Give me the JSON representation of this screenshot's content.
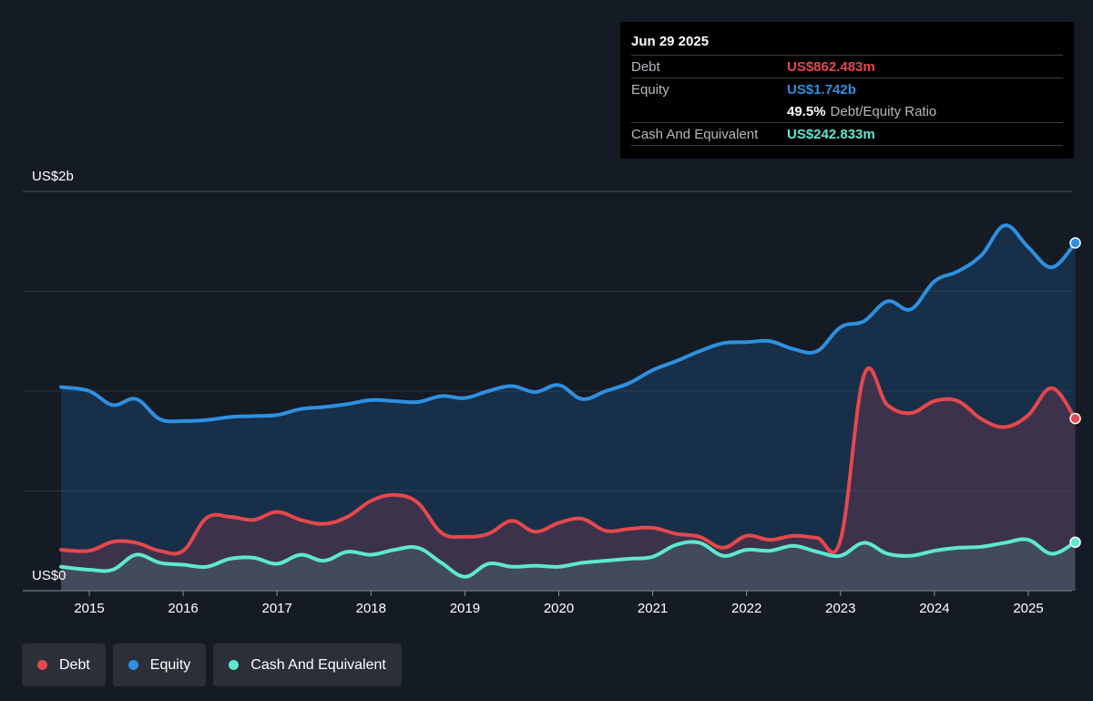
{
  "tooltip": {
    "date": "Jun 29 2025",
    "debt_label": "Debt",
    "debt_value": "US$862.483m",
    "equity_label": "Equity",
    "equity_value": "US$1.742b",
    "ratio_value": "49.5%",
    "ratio_label": "Debt/Equity Ratio",
    "cash_label": "Cash And Equivalent",
    "cash_value": "US$242.833m"
  },
  "legend": [
    {
      "label": "Debt",
      "color": "#e5484d"
    },
    {
      "label": "Equity",
      "color": "#2e90e0"
    },
    {
      "label": "Cash And Equivalent",
      "color": "#5ee8cf"
    }
  ],
  "chart_data": {
    "type": "area",
    "title": "",
    "xlabel": "",
    "ylabel": "",
    "y_axis_labels": [
      "US$2b",
      "US$0"
    ],
    "x_ticks": [
      "2015",
      "2016",
      "2017",
      "2018",
      "2019",
      "2020",
      "2021",
      "2022",
      "2023",
      "2024",
      "2025"
    ],
    "xlim": [
      2014.7,
      2025.5
    ],
    "ylim": [
      0,
      2000
    ],
    "y_unit": "US$m",
    "grid": true,
    "legend_position": "bottom-left",
    "series": [
      {
        "name": "Equity",
        "color": "#2e90e0",
        "points": [
          [
            2014.7,
            1020
          ],
          [
            2015.0,
            1000
          ],
          [
            2015.25,
            930
          ],
          [
            2015.5,
            960
          ],
          [
            2015.75,
            860
          ],
          [
            2016.0,
            850
          ],
          [
            2016.25,
            855
          ],
          [
            2016.5,
            870
          ],
          [
            2016.75,
            875
          ],
          [
            2017.0,
            880
          ],
          [
            2017.25,
            910
          ],
          [
            2017.5,
            920
          ],
          [
            2017.75,
            935
          ],
          [
            2018.0,
            955
          ],
          [
            2018.25,
            950
          ],
          [
            2018.5,
            945
          ],
          [
            2018.75,
            975
          ],
          [
            2019.0,
            965
          ],
          [
            2019.25,
            1000
          ],
          [
            2019.5,
            1025
          ],
          [
            2019.75,
            995
          ],
          [
            2020.0,
            1030
          ],
          [
            2020.25,
            960
          ],
          [
            2020.5,
            1000
          ],
          [
            2020.75,
            1040
          ],
          [
            2021.0,
            1105
          ],
          [
            2021.25,
            1150
          ],
          [
            2021.5,
            1200
          ],
          [
            2021.75,
            1240
          ],
          [
            2022.0,
            1245
          ],
          [
            2022.25,
            1250
          ],
          [
            2022.5,
            1210
          ],
          [
            2022.75,
            1200
          ],
          [
            2023.0,
            1320
          ],
          [
            2023.25,
            1350
          ],
          [
            2023.5,
            1450
          ],
          [
            2023.75,
            1410
          ],
          [
            2024.0,
            1550
          ],
          [
            2024.25,
            1600
          ],
          [
            2024.5,
            1680
          ],
          [
            2024.75,
            1830
          ],
          [
            2025.0,
            1720
          ],
          [
            2025.25,
            1620
          ],
          [
            2025.5,
            1742
          ]
        ]
      },
      {
        "name": "Debt",
        "color": "#e5484d",
        "points": [
          [
            2014.7,
            205
          ],
          [
            2015.0,
            200
          ],
          [
            2015.25,
            245
          ],
          [
            2015.5,
            240
          ],
          [
            2015.75,
            200
          ],
          [
            2016.0,
            200
          ],
          [
            2016.25,
            365
          ],
          [
            2016.5,
            370
          ],
          [
            2016.75,
            355
          ],
          [
            2017.0,
            395
          ],
          [
            2017.25,
            355
          ],
          [
            2017.5,
            335
          ],
          [
            2017.75,
            370
          ],
          [
            2018.0,
            450
          ],
          [
            2018.25,
            480
          ],
          [
            2018.5,
            440
          ],
          [
            2018.75,
            290
          ],
          [
            2019.0,
            270
          ],
          [
            2019.25,
            285
          ],
          [
            2019.5,
            350
          ],
          [
            2019.75,
            295
          ],
          [
            2020.0,
            340
          ],
          [
            2020.25,
            360
          ],
          [
            2020.5,
            300
          ],
          [
            2020.75,
            310
          ],
          [
            2021.0,
            315
          ],
          [
            2021.25,
            285
          ],
          [
            2021.5,
            270
          ],
          [
            2021.75,
            215
          ],
          [
            2022.0,
            275
          ],
          [
            2022.25,
            255
          ],
          [
            2022.5,
            275
          ],
          [
            2022.75,
            265
          ],
          [
            2023.0,
            255
          ],
          [
            2023.25,
            1080
          ],
          [
            2023.5,
            930
          ],
          [
            2023.75,
            890
          ],
          [
            2024.0,
            950
          ],
          [
            2024.25,
            950
          ],
          [
            2024.5,
            860
          ],
          [
            2024.75,
            820
          ],
          [
            2025.0,
            880
          ],
          [
            2025.25,
            1015
          ],
          [
            2025.5,
            862.483
          ]
        ]
      },
      {
        "name": "Cash And Equivalent",
        "color": "#5ee8cf",
        "points": [
          [
            2014.7,
            120
          ],
          [
            2015.0,
            105
          ],
          [
            2015.25,
            105
          ],
          [
            2015.5,
            180
          ],
          [
            2015.75,
            140
          ],
          [
            2016.0,
            130
          ],
          [
            2016.25,
            120
          ],
          [
            2016.5,
            160
          ],
          [
            2016.75,
            165
          ],
          [
            2017.0,
            135
          ],
          [
            2017.25,
            180
          ],
          [
            2017.5,
            150
          ],
          [
            2017.75,
            195
          ],
          [
            2018.0,
            180
          ],
          [
            2018.25,
            205
          ],
          [
            2018.5,
            215
          ],
          [
            2018.75,
            140
          ],
          [
            2019.0,
            70
          ],
          [
            2019.25,
            135
          ],
          [
            2019.5,
            120
          ],
          [
            2019.75,
            125
          ],
          [
            2020.0,
            120
          ],
          [
            2020.25,
            140
          ],
          [
            2020.5,
            150
          ],
          [
            2020.75,
            160
          ],
          [
            2021.0,
            170
          ],
          [
            2021.25,
            230
          ],
          [
            2021.5,
            240
          ],
          [
            2021.75,
            175
          ],
          [
            2022.0,
            205
          ],
          [
            2022.25,
            200
          ],
          [
            2022.5,
            225
          ],
          [
            2022.75,
            195
          ],
          [
            2023.0,
            175
          ],
          [
            2023.25,
            240
          ],
          [
            2023.5,
            185
          ],
          [
            2023.75,
            175
          ],
          [
            2024.0,
            200
          ],
          [
            2024.25,
            215
          ],
          [
            2024.5,
            220
          ],
          [
            2024.75,
            240
          ],
          [
            2025.0,
            255
          ],
          [
            2025.25,
            185
          ],
          [
            2025.5,
            242.833
          ]
        ]
      }
    ]
  }
}
